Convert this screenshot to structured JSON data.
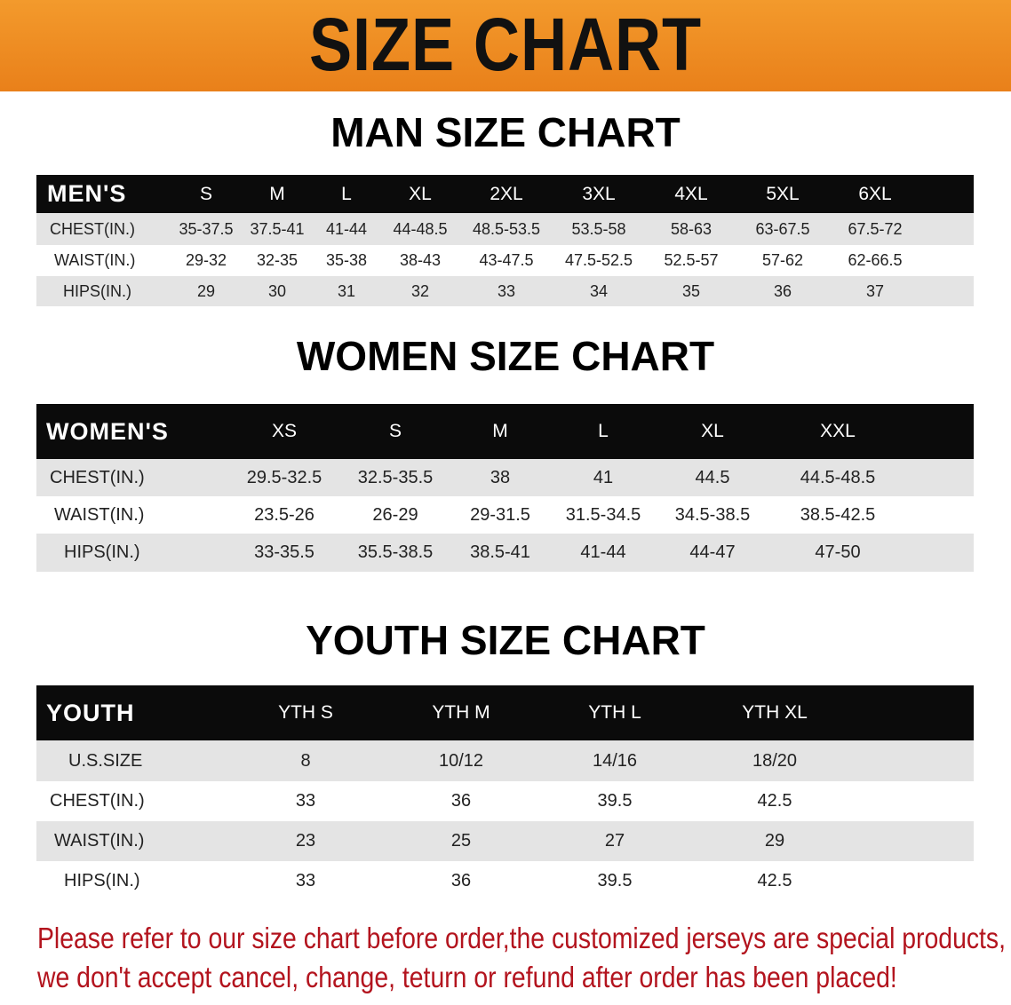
{
  "banner_title": "SIZE CHART",
  "men": {
    "title": "MAN SIZE CHART",
    "header": [
      "MEN'S",
      "S",
      "M",
      "L",
      "XL",
      "2XL",
      "3XL",
      "4XL",
      "5XL",
      "6XL"
    ],
    "rows": [
      [
        "CHEST(IN.)",
        "35-37.5",
        "37.5-41",
        "41-44",
        "44-48.5",
        "48.5-53.5",
        "53.5-58",
        "58-63",
        "63-67.5",
        "67.5-72"
      ],
      [
        "WAIST(IN.)",
        "29-32",
        "32-35",
        "35-38",
        "38-43",
        "43-47.5",
        "47.5-52.5",
        "52.5-57",
        "57-62",
        "62-66.5"
      ],
      [
        "HIPS(IN.)",
        "29",
        "30",
        "31",
        "32",
        "33",
        "34",
        "35",
        "36",
        "37"
      ]
    ]
  },
  "women": {
    "title": "WOMEN SIZE CHART",
    "header": [
      "WOMEN'S",
      "XS",
      "S",
      "M",
      "L",
      "XL",
      "XXL"
    ],
    "rows": [
      [
        "CHEST(IN.)",
        "29.5-32.5",
        "32.5-35.5",
        "38",
        "41",
        "44.5",
        "44.5-48.5"
      ],
      [
        "WAIST(IN.)",
        "23.5-26",
        "26-29",
        "29-31.5",
        "31.5-34.5",
        "34.5-38.5",
        "38.5-42.5"
      ],
      [
        "HIPS(IN.)",
        "33-35.5",
        "35.5-38.5",
        "38.5-41",
        "41-44",
        "44-47",
        "47-50"
      ]
    ]
  },
  "youth": {
    "title": "YOUTH SIZE CHART",
    "header": [
      "YOUTH",
      "YTH S",
      "YTH M",
      "YTH L",
      "YTH XL"
    ],
    "rows": [
      [
        "U.S.SIZE",
        "8",
        "10/12",
        "14/16",
        "18/20"
      ],
      [
        "CHEST(IN.)",
        "33",
        "36",
        "39.5",
        "42.5"
      ],
      [
        "WAIST(IN.)",
        "23",
        "25",
        "27",
        "29"
      ],
      [
        "HIPS(IN.)",
        "33",
        "36",
        "39.5",
        "42.5"
      ]
    ]
  },
  "note": {
    "line1": "Please refer to our size chart before order,the customized jerseys are special products,",
    "line2": "we don't accept cancel, change, teturn or refund after order has been placed!"
  },
  "colors": {
    "banner": "#ee8a22",
    "header_bg": "#0b0b0b",
    "row_gray": "#e4e4e4",
    "note": "#b3141e"
  }
}
